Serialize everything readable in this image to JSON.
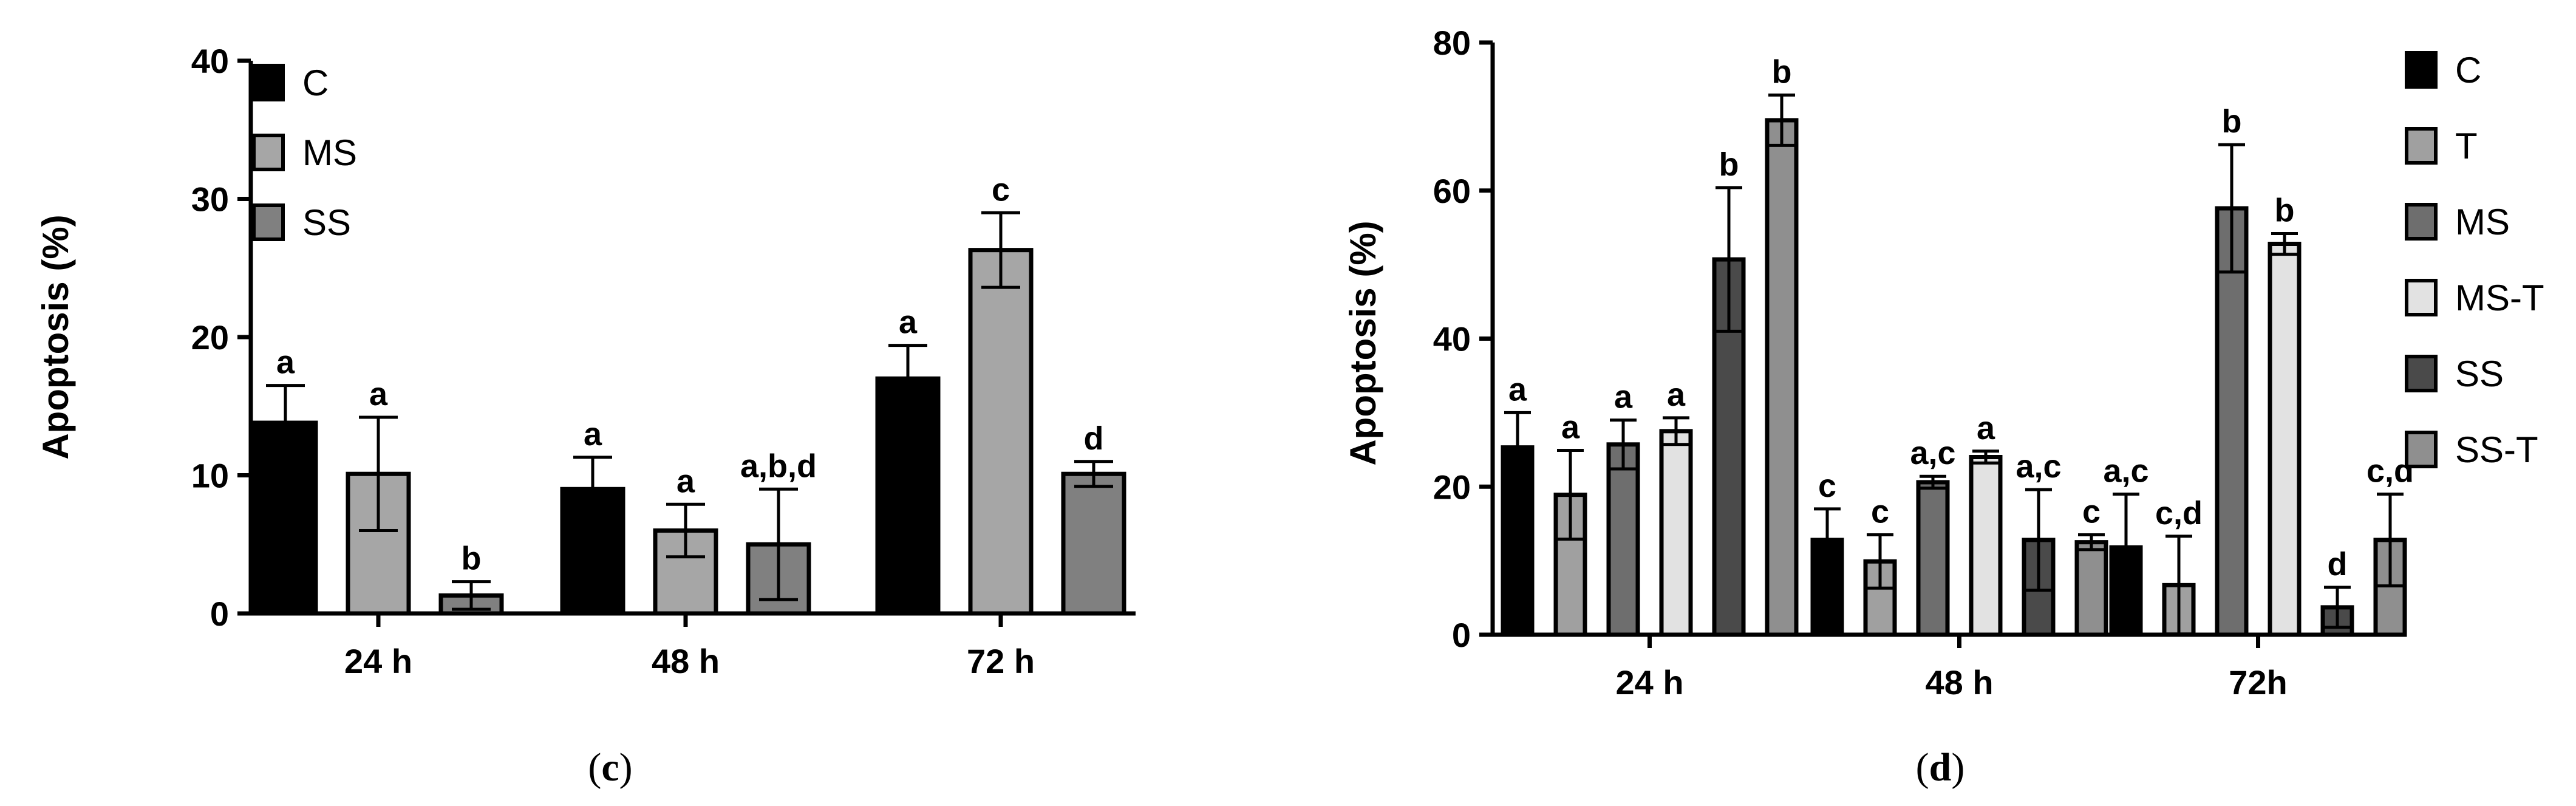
{
  "chart_data": [
    {
      "panel_label": "c",
      "type": "bar",
      "ylabel": "Apoptosis (%)",
      "ylim": [
        0,
        40
      ],
      "yticks": [
        0,
        10,
        20,
        30,
        40
      ],
      "categories": [
        "24 h",
        "48 h",
        "72 h"
      ],
      "series": [
        {
          "name": "C",
          "color": "#000000",
          "values": [
            13.8,
            9.0,
            17.0
          ],
          "errors": [
            2.7,
            2.3,
            2.4
          ],
          "labels": [
            "a",
            "a",
            "a"
          ]
        },
        {
          "name": "MS",
          "color": "#a6a6a6",
          "values": [
            10.1,
            6.0,
            26.3
          ],
          "errors": [
            4.1,
            1.9,
            2.7
          ],
          "labels": [
            "a",
            "a",
            "c"
          ]
        },
        {
          "name": "SS",
          "color": "#808080",
          "values": [
            1.3,
            5.0,
            10.1
          ],
          "errors": [
            1.0,
            4.0,
            0.9
          ],
          "labels": [
            "b",
            "a,b,d",
            "d"
          ]
        }
      ],
      "legend_position": "top-left",
      "grid": false
    },
    {
      "panel_label": "d",
      "type": "bar",
      "ylabel": "Apoptosis (%)",
      "ylim": [
        0,
        80
      ],
      "yticks": [
        0,
        20,
        40,
        60,
        80
      ],
      "categories": [
        "24 h",
        "48 h",
        "72h"
      ],
      "series": [
        {
          "name": "C",
          "color": "#000000",
          "values": [
            25.3,
            12.8,
            11.8
          ],
          "errors": [
            4.7,
            4.2,
            7.2
          ],
          "labels": [
            "a",
            "c",
            "a,c"
          ]
        },
        {
          "name": "T",
          "color": "#a0a0a0",
          "values": [
            18.9,
            9.9,
            6.7
          ],
          "errors": [
            6.0,
            3.6,
            6.6
          ],
          "labels": [
            "a",
            "c",
            "c,d"
          ]
        },
        {
          "name": "MS",
          "color": "#6e6e6e",
          "values": [
            25.7,
            20.6,
            57.6
          ],
          "errors": [
            3.3,
            0.8,
            8.6
          ],
          "labels": [
            "a",
            "a,c",
            "b"
          ]
        },
        {
          "name": "MS-T",
          "color": "#e2e2e2",
          "values": [
            27.5,
            24.0,
            52.8
          ],
          "errors": [
            1.8,
            0.8,
            1.4
          ],
          "labels": [
            "a",
            "a",
            "b"
          ]
        },
        {
          "name": "SS",
          "color": "#4a4a4a",
          "values": [
            50.7,
            12.8,
            3.7
          ],
          "errors": [
            9.7,
            6.8,
            2.7
          ],
          "labels": [
            "b",
            "a,c",
            "d"
          ]
        },
        {
          "name": "SS-T",
          "color": "#8f8f8f",
          "values": [
            69.5,
            12.5,
            12.8
          ],
          "errors": [
            3.4,
            1.0,
            6.2
          ],
          "labels": [
            "b",
            "c",
            "c,d"
          ]
        }
      ],
      "legend_position": "right",
      "grid": false
    }
  ]
}
